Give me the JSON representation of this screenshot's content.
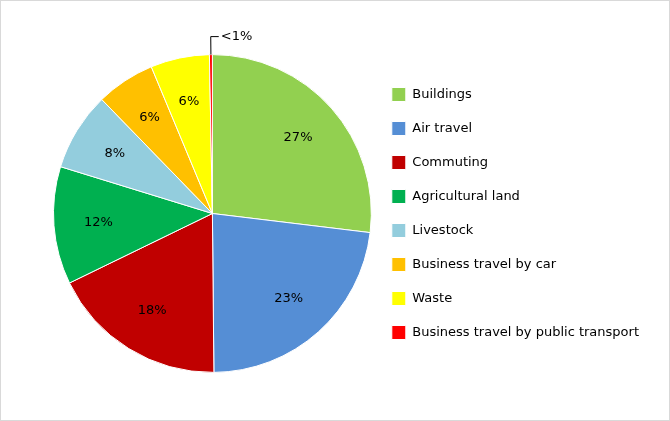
{
  "chart_data": {
    "type": "pie",
    "categories": [
      "Buildings",
      "Air travel",
      "Commuting",
      "Agricultural land",
      "Livestock",
      "Business travel by car",
      "Waste",
      "Business travel by public transport"
    ],
    "values": [
      27,
      23,
      18,
      12,
      8,
      6,
      6,
      0.3
    ],
    "value_labels": [
      "27%",
      "23%",
      "18%",
      "12%",
      "8%",
      "6%",
      "6%",
      "<1%"
    ],
    "colors": [
      "#92d050",
      "#558ed5",
      "#c00000",
      "#00b050",
      "#93cddd",
      "#ffc000",
      "#ffff00",
      "#ff0000"
    ],
    "legend": "right",
    "data_labels": true
  }
}
